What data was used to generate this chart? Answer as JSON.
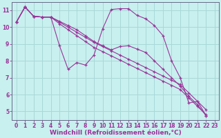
{
  "xlabel": "Windchill (Refroidissement éolien,°C)",
  "background_color": "#c8f0ee",
  "grid_color": "#a8d8d8",
  "line_color": "#993399",
  "spine_color": "#666688",
  "xlim": [
    -0.5,
    23.5
  ],
  "ylim": [
    4.5,
    11.5
  ],
  "xticks": [
    0,
    1,
    2,
    3,
    4,
    5,
    6,
    7,
    8,
    9,
    10,
    11,
    12,
    13,
    14,
    15,
    16,
    17,
    18,
    19,
    20,
    21,
    22,
    23
  ],
  "yticks": [
    5,
    6,
    7,
    8,
    9,
    10,
    11
  ],
  "series": [
    {
      "x": [
        0,
        1,
        2,
        3,
        4,
        5,
        6,
        7,
        8,
        9,
        10,
        11,
        12,
        13,
        14,
        15,
        16,
        17,
        18,
        19,
        20,
        21,
        22
      ],
      "y": [
        10.3,
        11.2,
        10.65,
        10.6,
        10.6,
        8.9,
        7.5,
        7.9,
        7.75,
        8.35,
        9.9,
        11.05,
        11.1,
        11.1,
        10.7,
        10.5,
        10.1,
        9.5,
        8.0,
        7.0,
        5.5,
        5.6,
        4.75
      ]
    },
    {
      "x": [
        0,
        1,
        2,
        3,
        4,
        5,
        6,
        7,
        8,
        9,
        10,
        11,
        12,
        13,
        14,
        15,
        16,
        17,
        18,
        19,
        20,
        21,
        22
      ],
      "y": [
        10.3,
        11.2,
        10.65,
        10.6,
        10.6,
        10.35,
        10.1,
        9.85,
        9.5,
        9.15,
        8.9,
        8.65,
        8.85,
        8.9,
        8.7,
        8.5,
        8.0,
        7.5,
        7.0,
        6.5,
        5.9,
        5.4,
        4.75
      ]
    },
    {
      "x": [
        0,
        1,
        2,
        3,
        4,
        5,
        6,
        7,
        8,
        9,
        10,
        11,
        12,
        13,
        14,
        15,
        16,
        17,
        18,
        19,
        20,
        21,
        22
      ],
      "y": [
        10.3,
        11.2,
        10.65,
        10.6,
        10.6,
        10.3,
        10.0,
        9.7,
        9.4,
        9.1,
        8.85,
        8.6,
        8.35,
        8.1,
        7.85,
        7.6,
        7.35,
        7.1,
        6.85,
        6.6,
        6.1,
        5.6,
        5.1
      ]
    },
    {
      "x": [
        0,
        1,
        2,
        3,
        4,
        5,
        6,
        7,
        8,
        9,
        10,
        11,
        12,
        13,
        14,
        15,
        16,
        17,
        18,
        19,
        20,
        21,
        22
      ],
      "y": [
        10.3,
        11.2,
        10.65,
        10.6,
        10.6,
        10.2,
        9.85,
        9.5,
        9.15,
        8.8,
        8.55,
        8.3,
        8.05,
        7.8,
        7.55,
        7.3,
        7.05,
        6.8,
        6.55,
        6.3,
        5.8,
        5.3,
        4.8
      ]
    }
  ],
  "xlabel_fontsize": 6.5,
  "tick_fontsize": 5.5
}
